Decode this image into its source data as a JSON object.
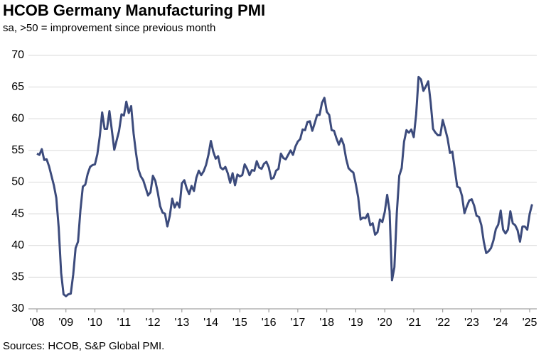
{
  "chart_data": {
    "type": "line",
    "title": "HCOB Germany Manufacturing PMI",
    "subtitle": "sa, >50 = improvement since previous month",
    "source": "Sources: HCOB, S&P Global PMI.",
    "color": "#3c4b7c",
    "grid": true,
    "ylim": [
      30,
      70
    ],
    "yticks": [
      30,
      35,
      40,
      45,
      50,
      55,
      60,
      65,
      70
    ],
    "categories": [
      "'08",
      null,
      null,
      null,
      null,
      null,
      null,
      null,
      null,
      null,
      null,
      null,
      "'09",
      null,
      null,
      null,
      null,
      null,
      null,
      null,
      null,
      null,
      null,
      null,
      "'10",
      null,
      null,
      null,
      null,
      null,
      null,
      null,
      null,
      null,
      null,
      null,
      "'11",
      null,
      null,
      null,
      null,
      null,
      null,
      null,
      null,
      null,
      null,
      null,
      "'12",
      null,
      null,
      null,
      null,
      null,
      null,
      null,
      null,
      null,
      null,
      null,
      "'13",
      null,
      null,
      null,
      null,
      null,
      null,
      null,
      null,
      null,
      null,
      null,
      "'14",
      null,
      null,
      null,
      null,
      null,
      null,
      null,
      null,
      null,
      null,
      null,
      "'15",
      null,
      null,
      null,
      null,
      null,
      null,
      null,
      null,
      null,
      null,
      null,
      "'16",
      null,
      null,
      null,
      null,
      null,
      null,
      null,
      null,
      null,
      null,
      null,
      "'17",
      null,
      null,
      null,
      null,
      null,
      null,
      null,
      null,
      null,
      null,
      null,
      "'18",
      null,
      null,
      null,
      null,
      null,
      null,
      null,
      null,
      null,
      null,
      null,
      "'19",
      null,
      null,
      null,
      null,
      null,
      null,
      null,
      null,
      null,
      null,
      null,
      "'20",
      null,
      null,
      null,
      null,
      null,
      null,
      null,
      null,
      null,
      null,
      null,
      "'21",
      null,
      null,
      null,
      null,
      null,
      null,
      null,
      null,
      null,
      null,
      null,
      "'22",
      null,
      null,
      null,
      null,
      null,
      null,
      null,
      null,
      null,
      null,
      null,
      "'23",
      null,
      null,
      null,
      null,
      null,
      null,
      null,
      null,
      null,
      null,
      null,
      "'24",
      null,
      null,
      null,
      null,
      null,
      null,
      null,
      null,
      null,
      null,
      null,
      "'25",
      null
    ],
    "values": [
      54.5,
      54.3,
      55.2,
      53.5,
      53.6,
      52.5,
      51.0,
      49.5,
      47.5,
      42.8,
      35.7,
      32.3,
      32.0,
      32.3,
      32.4,
      35.4,
      39.6,
      40.6,
      45.6,
      49.3,
      49.6,
      51.3,
      52.4,
      52.7,
      52.8,
      54.4,
      57.2,
      61.0,
      58.4,
      58.4,
      61.2,
      58.2,
      55.1,
      56.6,
      58.1,
      60.7,
      60.5,
      62.7,
      60.9,
      62.0,
      57.7,
      54.6,
      52.0,
      50.9,
      50.3,
      49.1,
      47.9,
      48.4,
      51.0,
      50.2,
      48.4,
      46.2,
      45.2,
      45.0,
      43.0,
      44.7,
      47.4,
      46.0,
      46.8,
      46.0,
      49.8,
      50.3,
      49.0,
      48.1,
      49.4,
      48.6,
      50.7,
      51.8,
      51.1,
      51.7,
      52.7,
      54.3,
      56.5,
      54.8,
      53.7,
      54.1,
      52.3,
      52.0,
      52.4,
      51.4,
      49.9,
      51.4,
      49.5,
      51.2,
      50.9,
      51.1,
      52.8,
      52.1,
      51.1,
      51.9,
      51.8,
      53.3,
      52.3,
      52.1,
      52.9,
      53.2,
      52.3,
      50.5,
      50.7,
      51.8,
      52.1,
      54.5,
      53.8,
      53.6,
      54.3,
      55.0,
      54.3,
      55.6,
      56.4,
      56.8,
      58.3,
      58.2,
      59.5,
      59.6,
      58.1,
      59.3,
      60.6,
      60.6,
      62.5,
      63.3,
      61.1,
      60.6,
      58.2,
      58.1,
      56.9,
      55.9,
      56.9,
      55.9,
      53.7,
      52.2,
      51.8,
      51.5,
      49.7,
      47.6,
      44.1,
      44.4,
      44.3,
      45.0,
      43.2,
      43.5,
      41.7,
      42.1,
      44.1,
      43.7,
      45.3,
      48.0,
      45.4,
      34.5,
      36.6,
      45.2,
      51.0,
      52.2,
      56.4,
      58.2,
      57.8,
      58.3,
      57.1,
      60.7,
      66.6,
      66.2,
      64.4,
      65.1,
      65.9,
      62.6,
      58.4,
      57.8,
      57.4,
      57.4,
      59.8,
      58.4,
      56.9,
      54.6,
      54.8,
      52.0,
      49.3,
      49.1,
      47.8,
      45.1,
      46.2,
      47.1,
      47.3,
      46.3,
      44.7,
      44.5,
      43.2,
      40.6,
      38.8,
      39.1,
      39.6,
      40.8,
      42.6,
      43.3,
      45.5,
      42.5,
      41.9,
      42.5,
      45.4,
      43.5,
      43.2,
      42.4,
      40.6,
      43.0,
      43.0,
      42.5,
      45.0,
      46.5
    ]
  }
}
